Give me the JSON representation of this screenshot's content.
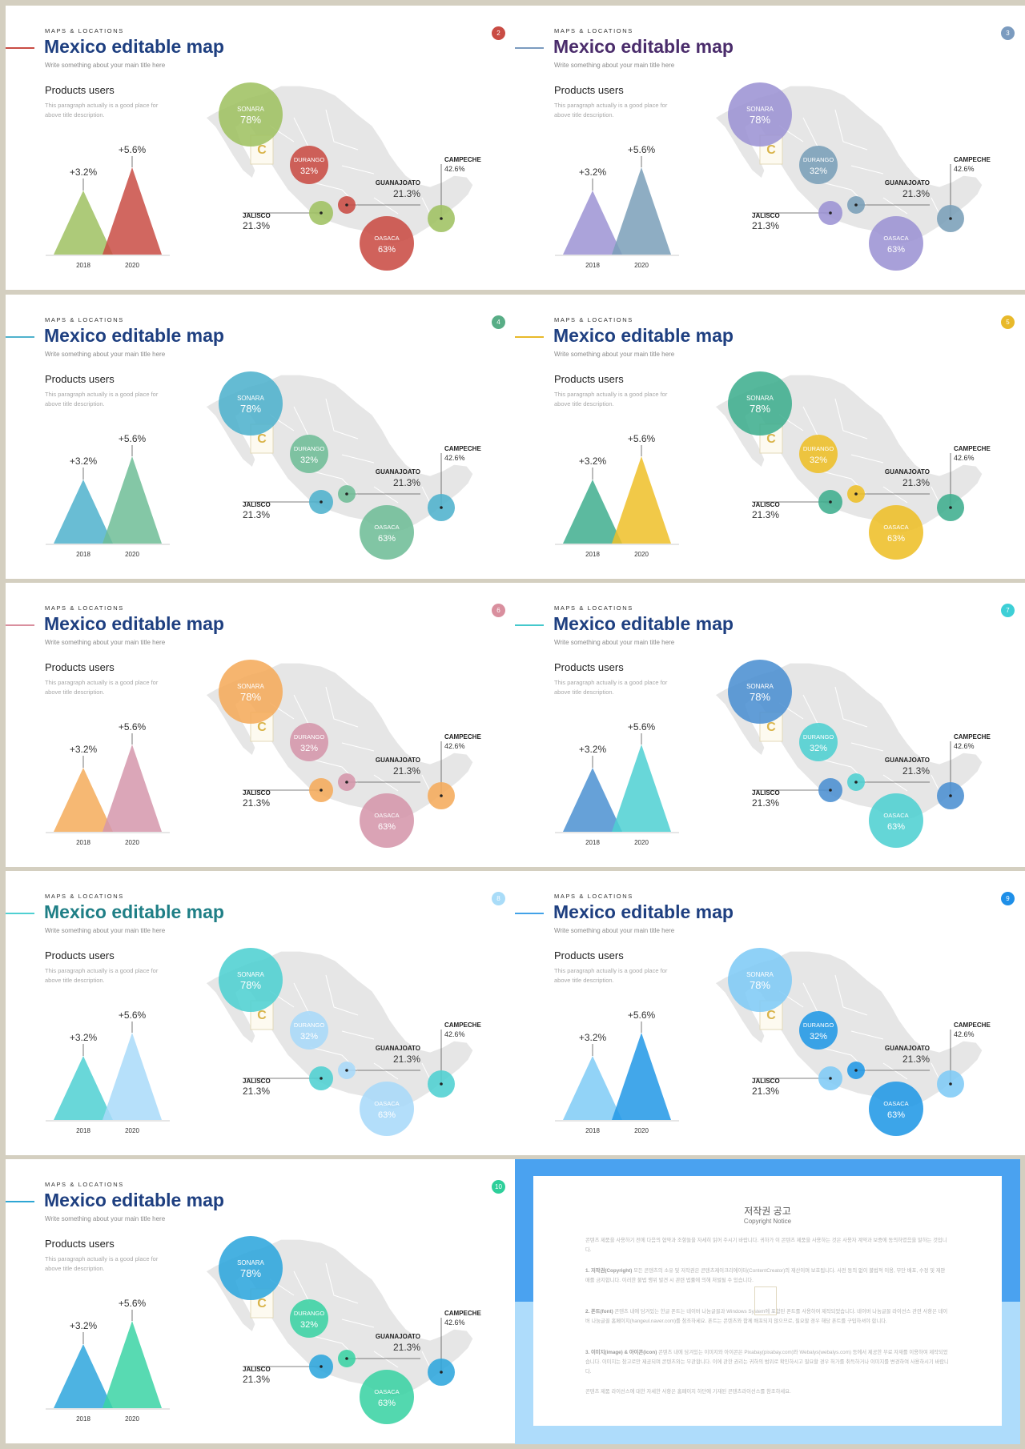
{
  "common": {
    "kicker": "MAPS & LOCATIONS",
    "title": "Mexico editable map",
    "subtitle": "Write something about your main title here",
    "products_title": "Products users",
    "products_desc_line1": "This paragraph actually is a good place for",
    "products_desc_line2": "above title description.",
    "chart": {
      "type": "bar",
      "categories": [
        "2018",
        "2020"
      ],
      "growth_labels": [
        "+3.2%",
        "+5.6%"
      ]
    },
    "regions": {
      "sonora": {
        "name": "SONARA",
        "value": "78%"
      },
      "durango": {
        "name": "DURANGO",
        "value": "32%"
      },
      "guanajoato": {
        "name": "GUANAJOATO",
        "value": "21.3%"
      },
      "campeche": {
        "name": "CAMPECHE",
        "value": "42.6%"
      },
      "jalisco": {
        "name": "JALISCO",
        "value": "21.3%"
      },
      "oasaca": {
        "name": "OASACA",
        "value": "63%"
      }
    }
  },
  "slides": [
    {
      "page": "2",
      "title_color": "#1e3f80",
      "accent_line": "#c94c44",
      "badge": "#c94c44",
      "a": "#9fc162",
      "b": "#c94c44",
      "pattern": "abbaab"
    },
    {
      "page": "3",
      "title_color": "#4a2c6b",
      "accent_line": "#7b9bbf",
      "badge": "#7b9bbf",
      "a": "#9c93d4",
      "b": "#7a9fb8",
      "pattern": "abbbaa"
    },
    {
      "page": "4",
      "title_color": "#1e3f80",
      "accent_line": "#4fb2cd",
      "badge": "#58ad86",
      "a": "#4fb2cd",
      "b": "#6fbd97",
      "pattern": "abbaab"
    },
    {
      "page": "5",
      "title_color": "#1e3f80",
      "accent_line": "#e8b92a",
      "badge": "#e8b92a",
      "a": "#3fae8e",
      "b": "#eebf28",
      "pattern": "abbaab"
    },
    {
      "page": "6",
      "title_color": "#1e3f80",
      "accent_line": "#d98f9e",
      "badge": "#d98f9e",
      "a": "#f5ab5b",
      "b": "#d596ab",
      "pattern": "abbaab"
    },
    {
      "page": "7",
      "title_color": "#1e3f80",
      "accent_line": "#45c8cc",
      "badge": "#3dcfd6",
      "a": "#4b90d1",
      "b": "#4ed0d2",
      "pattern": "abbaab"
    },
    {
      "page": "8",
      "title_color": "#1f7f86",
      "accent_line": "#4fd0d2",
      "badge": "#a9dcf8",
      "a": "#4fd0d2",
      "b": "#a9daf9",
      "pattern": "abbaab"
    },
    {
      "page": "9",
      "title_color": "#1e3f80",
      "accent_line": "#42a2e8",
      "badge": "#1e8fe8",
      "a": "#7fcbf6",
      "b": "#2198e6",
      "pattern": "abbaab"
    },
    {
      "page": "10",
      "title_color": "#1e3f80",
      "accent_line": "#2ea6d4",
      "badge": "#2ecf9a",
      "a": "#2ea6dd",
      "b": "#3bd3a4",
      "pattern": "abbaab"
    }
  ],
  "copyright": {
    "title": "저작권 공고",
    "subtitle": "Copyright Notice",
    "intro": "콘텐츠 제품을 사용하기 전에 다음의 협약과 조항들을 자세히 읽어 주시기 바랍니다. 귀하가 이 콘텐츠 제품을 사용하는 것은 사용자 계약과 보증에 동의하였음을 말하는 것입니다.",
    "s1_label": "1. 저작권(Copyright)",
    "s1_text": "모든 콘텐츠의 소유 및 저작권은 콘텐츠제이크리에이터(ContentCreator)의 재산이며 보호됩니다. 사전 동의 없이 불법적 이용, 무단 배포, 수정 및 재판매를 금지합니다. 이러한 불법 행위 발견 시 관련 법률에 의해 처벌될 수 있습니다.",
    "s2_label": "2. 폰트(font)",
    "s2_text": "콘텐츠 내에 담겨있는 한글 폰트는 네이버 나눔글꼴과 Windows System에 포함된 폰트를 사용하여 제작되었습니다. 네이버 나눔글꼴 라이선스 관련 사항은 네이버 나눔글꼴 홈페이지(hangeul.naver.com)를 참조하세요. 폰트는 콘텐츠와 함께 배포되지 않으므로, 필요할 경우 해당 폰트를 구입하셔야 합니다.",
    "s3_label": "3. 이미지(image) & 아이콘(icon)",
    "s3_text": "콘텐츠 내에 담겨있는 이미지와 아이콘은 Pixabay(pixabay.com)와 Webalys(webalys.com) 등에서 제공한 무료 자재를 이용하여 제작되었습니다. 이미지는 참고로만 제공되며 콘텐츠와는 무관합니다. 이에 관한 권리는 귀하의 범위로 확인하시고 필요할 경우 허가를 취득하거나 이미지를 변경하여 사용하시기 바랍니다.",
    "footer": "콘텐츠 제품 라이선스에 대한 자세한 사항은 홈페이지 하단에 기재된 콘텐츠라이선스를 참조하세요."
  }
}
